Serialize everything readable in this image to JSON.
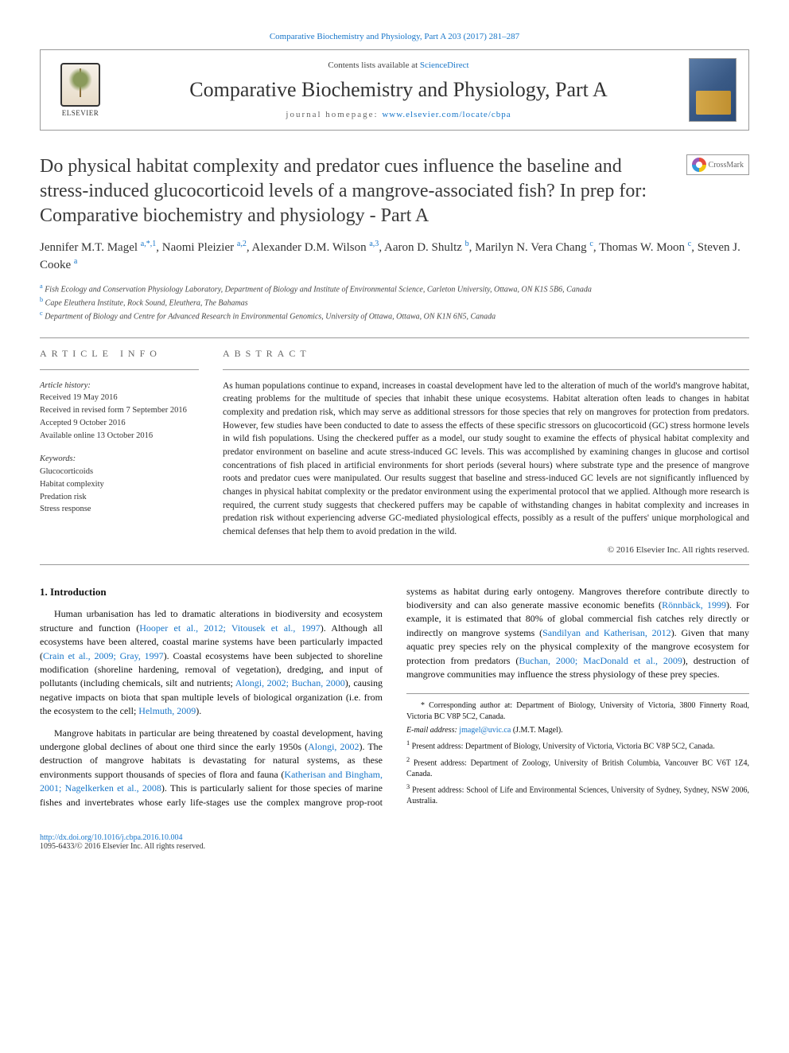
{
  "top_link_journal": "Comparative Biochemistry and Physiology, Part A 203 (2017) 281–287",
  "header": {
    "contents_prefix": "Contents lists available at ",
    "contents_link": "ScienceDirect",
    "journal_name": "Comparative Biochemistry and Physiology, Part A",
    "homepage_prefix": "journal homepage: ",
    "homepage_url": "www.elsevier.com/locate/cbpa",
    "elsevier_label": "ELSEVIER"
  },
  "crossmark_label": "CrossMark",
  "title": "Do physical habitat complexity and predator cues influence the baseline and stress-induced glucocorticoid levels of a mangrove-associated fish? In prep for: Comparative biochemistry and physiology - Part A",
  "authors_html": "Jennifer M.T. Magel <sup>a,*,1</sup>, Naomi Pleizier <sup>a,2</sup>, Alexander D.M. Wilson <sup>a,3</sup>, Aaron D. Shultz <sup>b</sup>, Marilyn N. Vera Chang <sup>c</sup>, Thomas W. Moon <sup>c</sup>, Steven J. Cooke <sup>a</sup>",
  "affiliations": [
    {
      "sup": "a",
      "text": "Fish Ecology and Conservation Physiology Laboratory, Department of Biology and Institute of Environmental Science, Carleton University, Ottawa, ON K1S 5B6, Canada"
    },
    {
      "sup": "b",
      "text": "Cape Eleuthera Institute, Rock Sound, Eleuthera, The Bahamas"
    },
    {
      "sup": "c",
      "text": "Department of Biology and Centre for Advanced Research in Environmental Genomics, University of Ottawa, Ottawa, ON K1N 6N5, Canada"
    }
  ],
  "info": {
    "label": "ARTICLE INFO",
    "history_label": "Article history:",
    "history": [
      "Received 19 May 2016",
      "Received in revised form 7 September 2016",
      "Accepted 9 October 2016",
      "Available online 13 October 2016"
    ],
    "keywords_label": "Keywords:",
    "keywords": [
      "Glucocorticoids",
      "Habitat complexity",
      "Predation risk",
      "Stress response"
    ]
  },
  "abstract": {
    "label": "ABSTRACT",
    "text": "As human populations continue to expand, increases in coastal development have led to the alteration of much of the world's mangrove habitat, creating problems for the multitude of species that inhabit these unique ecosystems. Habitat alteration often leads to changes in habitat complexity and predation risk, which may serve as additional stressors for those species that rely on mangroves for protection from predators. However, few studies have been conducted to date to assess the effects of these specific stressors on glucocorticoid (GC) stress hormone levels in wild fish populations. Using the checkered puffer as a model, our study sought to examine the effects of physical habitat complexity and predator environment on baseline and acute stress-induced GC levels. This was accomplished by examining changes in glucose and cortisol concentrations of fish placed in artificial environments for short periods (several hours) where substrate type and the presence of mangrove roots and predator cues were manipulated. Our results suggest that baseline and stress-induced GC levels are not significantly influenced by changes in physical habitat complexity or the predator environment using the experimental protocol that we applied. Although more research is required, the current study suggests that checkered puffers may be capable of withstanding changes in habitat complexity and increases in predation risk without experiencing adverse GC-mediated physiological effects, possibly as a result of the puffers' unique morphological and chemical defenses that help them to avoid predation in the wild.",
    "copyright": "© 2016 Elsevier Inc. All rights reserved."
  },
  "body": {
    "intro_heading": "1. Introduction",
    "p1_pre": "Human urbanisation has led to dramatic alterations in biodiversity and ecosystem structure and function (",
    "p1_link1": "Hooper et al., 2012; Vitousek et al., 1997",
    "p1_mid1": "). Although all ecosystems have been altered, coastal marine systems have been particularly impacted (",
    "p1_link2": "Crain et al., 2009; Gray, 1997",
    "p1_mid2": "). Coastal ecosystems have been subjected to shoreline modification (shoreline hardening, removal of vegetation), dredging, and input of pollutants (including chemicals, silt and nutrients; ",
    "p1_link3": "Alongi, 2002; Buchan, 2000",
    "p1_mid3": "), causing negative impacts on biota that span multiple levels of biological organization (i.e. from the ecosystem to the cell; ",
    "p1_link4": "Helmuth, 2009",
    "p1_end": ").",
    "p2_pre": "Mangrove habitats in particular are being threatened by coastal development, having undergone global declines of about one third since the early 1950s (",
    "p2_link1": "Alongi, 2002",
    "p2_mid1": "). The destruction of mangrove habitats is devastating for natural systems, as these environments support thousands of species of flora and fauna (",
    "p2_link2": "Katherisan and Bingham, 2001; Nagelkerken et al., 2008",
    "p2_mid2": "). This is particularly salient for those species of marine fishes and invertebrates whose early life-stages use the complex mangrove prop-root systems as habitat during early ontogeny. Mangroves therefore contribute directly to biodiversity and can also generate massive economic benefits (",
    "p2_link3": "Rönnbäck, 1999",
    "p2_mid3": "). For example, it is estimated that 80% of global commercial fish catches rely directly or indirectly on mangrove systems (",
    "p2_link4": "Sandilyan and Katherisan, 2012",
    "p2_mid4": "). Given that many aquatic prey species rely on the physical complexity of the mangrove ecosystem for protection from predators (",
    "p2_link5": "Buchan, 2000; MacDonald et al., 2009",
    "p2_end": "), destruction of mangrove communities may influence the stress physiology of these prey species."
  },
  "footnotes": {
    "corr_label": "* Corresponding author at: Department of Biology, University of Victoria, 3800 Finnerty Road, Victoria BC V8P 5C2, Canada.",
    "email_label": "E-mail address: ",
    "email": "jmagel@uvic.ca",
    "email_suffix": " (J.M.T. Magel).",
    "n1": "Present address: Department of Biology, University of Victoria, Victoria BC V8P 5C2, Canada.",
    "n2": "Present address: Department of Zoology, University of British Columbia, Vancouver BC V6T 1Z4, Canada.",
    "n3": "Present address: School of Life and Environmental Sciences, University of Sydney, Sydney, NSW 2006, Australia."
  },
  "footer": {
    "doi": "http://dx.doi.org/10.1016/j.cbpa.2016.10.004",
    "issn_line": "1095-6433/© 2016 Elsevier Inc. All rights reserved."
  },
  "colors": {
    "link": "#1876c9",
    "text": "#111",
    "rule": "#999"
  }
}
